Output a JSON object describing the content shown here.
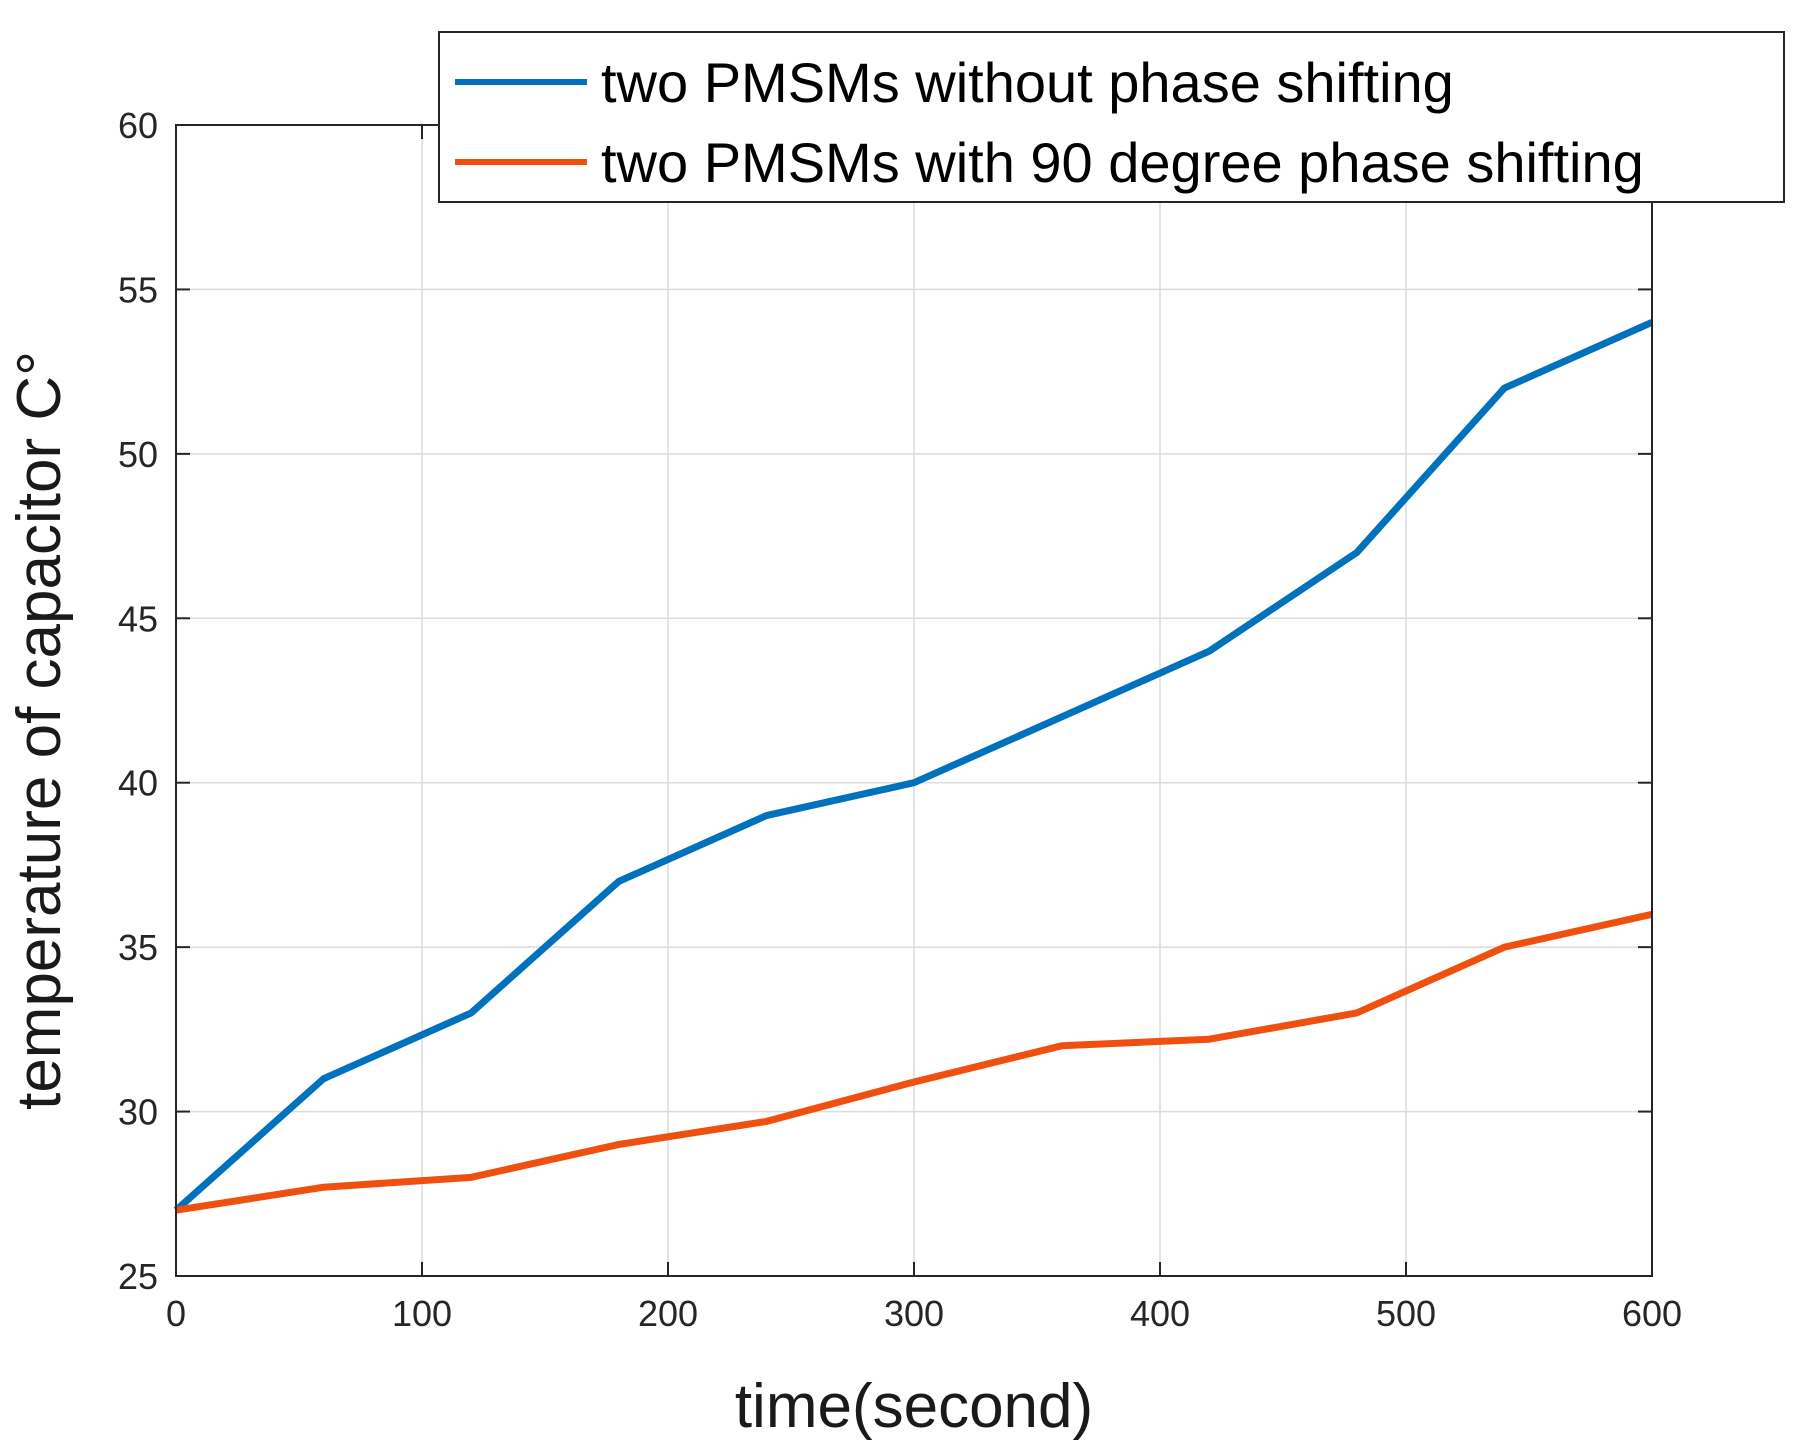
{
  "chart_data": {
    "type": "line",
    "xlabel": "time(second)",
    "ylabel": "temperature of capacitor C°",
    "xlim": [
      0,
      600
    ],
    "ylim": [
      25,
      60
    ],
    "xticks": [
      0,
      100,
      200,
      300,
      400,
      500,
      600
    ],
    "yticks": [
      25,
      30,
      35,
      40,
      45,
      50,
      55,
      60
    ],
    "grid": true,
    "legend_position": "top-right",
    "x": [
      0,
      60,
      120,
      180,
      240,
      300,
      360,
      420,
      480,
      540,
      600
    ],
    "series": [
      {
        "name": "two PMSMs without phase shifting",
        "color": "#0072BD",
        "values": [
          27,
          31,
          33,
          37,
          39,
          40,
          42,
          44,
          47,
          52,
          54
        ]
      },
      {
        "name": "two PMSMs with 90 degree phase shifting",
        "color": "#F0500F",
        "values": [
          27,
          27.7,
          28,
          29,
          29.7,
          30.9,
          32,
          32.2,
          33,
          35,
          36
        ]
      }
    ]
  }
}
